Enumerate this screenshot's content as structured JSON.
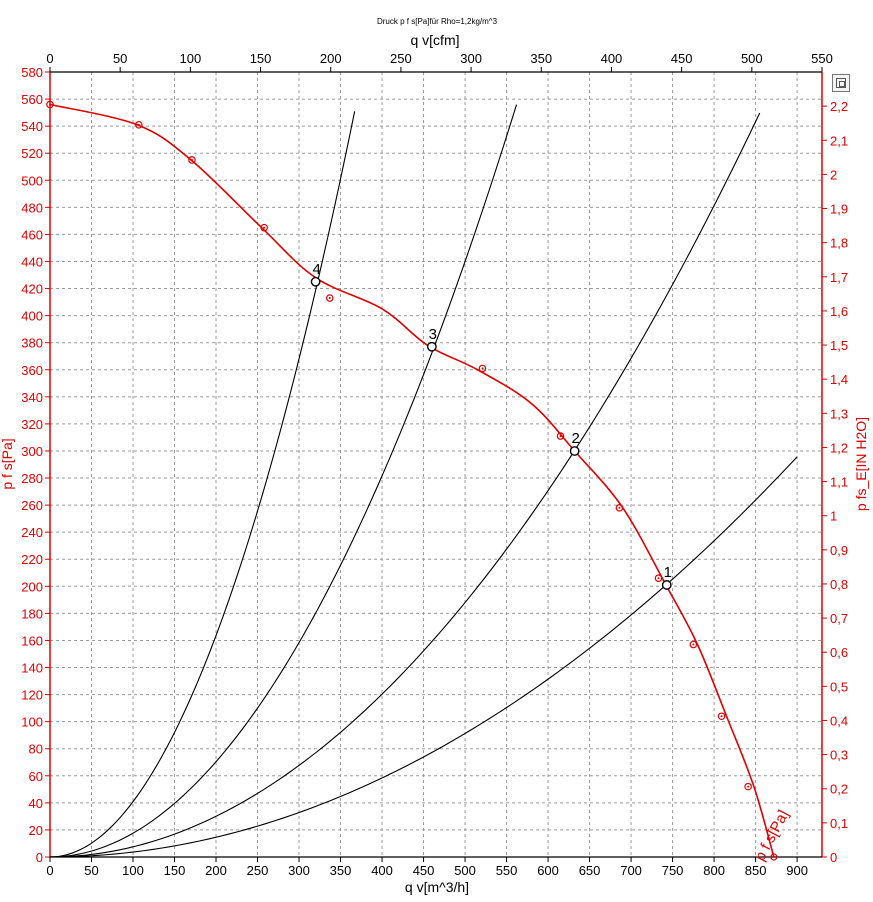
{
  "chart_data": {
    "type": "line",
    "title": "Druck p f s[Pa]für Rho=1,2kg/m^3",
    "xlabel": "q v[m^3/h]",
    "x2label": "q v[cfm]",
    "ylabel": "p f s[Pa]",
    "y2label": "p fs_E[IN H2O]",
    "xlim": [
      0,
      930
    ],
    "ylim": [
      0,
      580
    ],
    "x2lim": [
      0,
      550
    ],
    "y2lim": [
      0,
      2.3
    ],
    "grid": true,
    "x_ticks": [
      0,
      50,
      100,
      150,
      200,
      250,
      300,
      350,
      400,
      450,
      500,
      550,
      600,
      650,
      700,
      750,
      800,
      850,
      900
    ],
    "x2_ticks": [
      0,
      50,
      100,
      150,
      200,
      250,
      300,
      350,
      400,
      450,
      500,
      550
    ],
    "y_ticks": [
      0,
      20,
      40,
      60,
      80,
      100,
      120,
      140,
      160,
      180,
      200,
      220,
      240,
      260,
      280,
      300,
      320,
      340,
      360,
      380,
      400,
      420,
      440,
      460,
      480,
      500,
      520,
      540,
      560,
      580
    ],
    "y2_ticks": [
      "0",
      "0,1",
      "0,2",
      "0,3",
      "0,4",
      "0,5",
      "0,6",
      "0,7",
      "0,8",
      "0,9",
      "1",
      "1,1",
      "1,2",
      "1,3",
      "1,4",
      "1,5",
      "1,6",
      "1,7",
      "1,8",
      "1,9",
      "2",
      "2,1",
      "2,2"
    ],
    "series": [
      {
        "name": "p f s[Pa]",
        "color": "#e00000",
        "x": [
          0,
          105,
          170,
          255,
          320,
          400,
          455,
          515,
          580,
          632,
          690,
          742,
          780,
          815,
          848,
          872
        ],
        "y": [
          556,
          541,
          515,
          465,
          428,
          405,
          378,
          360,
          335,
          300,
          258,
          201,
          157,
          104,
          52,
          0
        ]
      },
      {
        "name": "",
        "color": "#e00000",
        "role": "measured points",
        "x": [
          0,
          107,
          171,
          258,
          337,
          521,
          615,
          686,
          733,
          775,
          809,
          841
        ],
        "y": [
          556,
          541,
          515,
          465,
          413,
          361,
          311,
          258,
          206,
          157,
          104,
          52
        ]
      },
      {
        "name": "",
        "color": "#000000",
        "role": "system curve 1",
        "k": 0.000365,
        "x_max": 900
      },
      {
        "name": "",
        "color": "#000000",
        "role": "system curve 2",
        "k": 0.000752,
        "x_max": 855
      },
      {
        "name": "",
        "color": "#000000",
        "role": "system curve 3",
        "k": 0.00176,
        "x_max": 562
      },
      {
        "name": "",
        "color": "#000000",
        "role": "system curve 4",
        "k": 0.00409,
        "x_max": 367
      }
    ],
    "operating_points": [
      {
        "label": "1",
        "x": 743,
        "y": 201
      },
      {
        "label": "2",
        "x": 632,
        "y": 300
      },
      {
        "label": "3",
        "x": 460,
        "y": 377
      },
      {
        "label": "4",
        "x": 320,
        "y": 425
      }
    ],
    "curve_label": "p f s[Pa]"
  }
}
